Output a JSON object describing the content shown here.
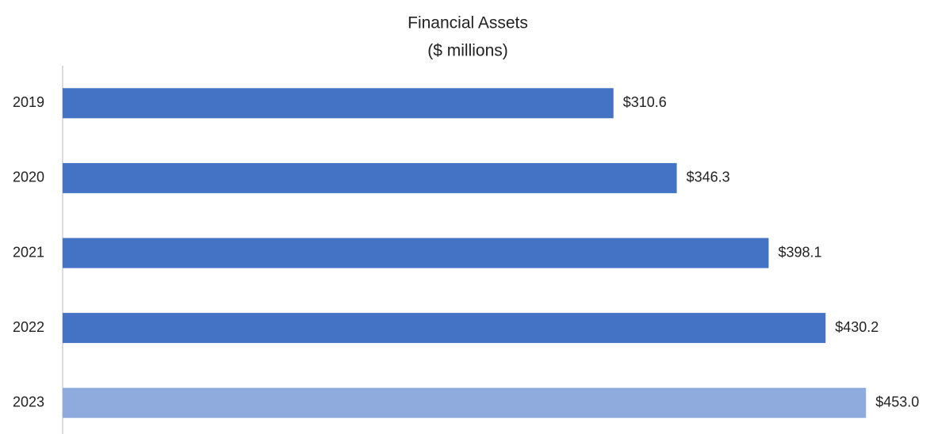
{
  "chart_data": {
    "type": "barh",
    "title": "Financial Assets",
    "subtitle": "($ millions)",
    "categories": [
      "2019",
      "2020",
      "2021",
      "2022",
      "2023"
    ],
    "values": [
      310.6,
      346.3,
      398.1,
      430.2,
      453.0
    ],
    "value_labels": [
      "$310.6",
      "$346.3",
      "$398.1",
      "$430.2",
      "$453.0"
    ],
    "colors": [
      "#4472c4",
      "#4472c4",
      "#4472c4",
      "#4472c4",
      "#8faadc"
    ],
    "xlim": [
      0,
      490
    ]
  }
}
